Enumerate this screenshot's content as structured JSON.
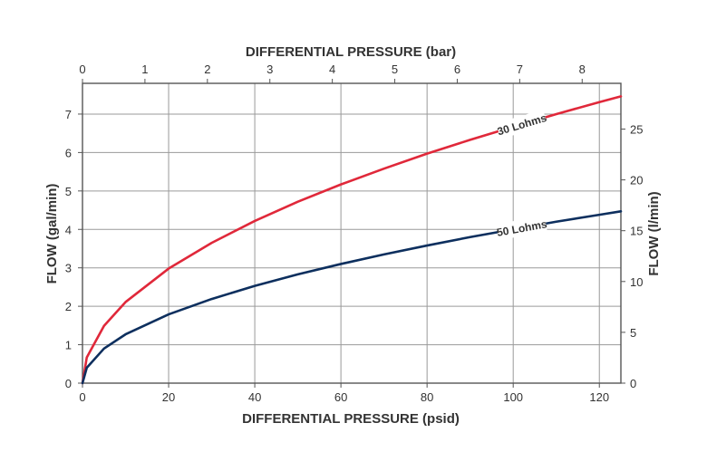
{
  "chart_data": {
    "type": "line",
    "title": "",
    "xlabel": "DIFFERENTIAL PRESSURE (psid)",
    "x2label": "DIFFERENTIAL PRESSURE (bar)",
    "ylabel": "FLOW (gal/min)",
    "y2label": "FLOW (l/min)",
    "xlim": [
      0,
      125
    ],
    "ylim": [
      0,
      7.8
    ],
    "x2lim": [
      0,
      8.62
    ],
    "y2lim": [
      0,
      29.5
    ],
    "x_ticks": [
      "0",
      "20",
      "40",
      "60",
      "80",
      "100",
      "120"
    ],
    "x2_ticks": [
      "0",
      "1",
      "2",
      "3",
      "4",
      "5",
      "6",
      "7",
      "8"
    ],
    "y_ticks": [
      "0",
      "1",
      "2",
      "3",
      "4",
      "5",
      "6",
      "7"
    ],
    "y2_ticks": [
      "0",
      "5",
      "10",
      "15",
      "20",
      "25"
    ],
    "grid": true,
    "legend": "inline curve labels",
    "series": [
      {
        "name": "30 Lohms",
        "color": "#e0283a",
        "x": [
          0,
          1,
          5,
          10,
          20,
          30,
          40,
          50,
          60,
          70,
          80,
          90,
          100,
          110,
          120,
          125
        ],
        "y": [
          0,
          0.67,
          1.49,
          2.11,
          2.98,
          3.65,
          4.22,
          4.72,
          5.17,
          5.58,
          5.97,
          6.33,
          6.67,
          7.0,
          7.31,
          7.46
        ]
      },
      {
        "name": "50 Lohms",
        "color": "#0d2f5e",
        "x": [
          0,
          1,
          5,
          10,
          20,
          30,
          40,
          50,
          60,
          70,
          80,
          90,
          100,
          110,
          120,
          125
        ],
        "y": [
          0,
          0.4,
          0.9,
          1.27,
          1.79,
          2.19,
          2.53,
          2.83,
          3.1,
          3.35,
          3.58,
          3.8,
          4.0,
          4.2,
          4.38,
          4.47
        ]
      }
    ]
  }
}
